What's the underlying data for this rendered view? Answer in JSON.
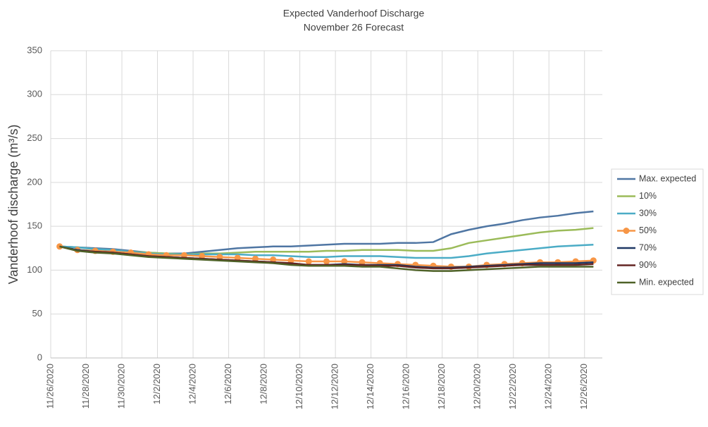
{
  "chart_data": {
    "type": "line",
    "title": "Expected Vanderhoof Discharge",
    "subtitle": "November 26 Forecast",
    "y_label": "Vanderhoof discharge (m³/s)",
    "categories": [
      "11/26/2020",
      null,
      "11/28/2020",
      null,
      "11/30/2020",
      null,
      "12/2/2020",
      null,
      "12/4/2020",
      null,
      "12/6/2020",
      null,
      "12/8/2020",
      null,
      "12/10/2020",
      null,
      "12/12/2020",
      null,
      "12/14/2020",
      null,
      "12/16/2020",
      null,
      "12/18/2020",
      null,
      "12/20/2020",
      null,
      "12/22/2020",
      null,
      "12/24/2020",
      null,
      "12/26/2020"
    ],
    "ylim": [
      0,
      350
    ],
    "yticks": [
      0,
      50,
      100,
      150,
      200,
      250,
      300,
      350
    ],
    "grid": true,
    "legend": "right",
    "series": [
      {
        "name": "Max. expected",
        "color": "#4f76a3",
        "values": [
          127,
          126,
          125,
          124,
          122,
          120,
          119,
          119,
          121,
          123,
          125,
          126,
          127,
          127,
          128,
          129,
          130,
          130,
          130,
          131,
          131,
          132,
          141,
          146,
          150,
          153,
          157,
          160,
          162,
          165,
          167
        ]
      },
      {
        "name": "10%",
        "color": "#9bbb59",
        "values": [
          127,
          126,
          124,
          123,
          121,
          120,
          119,
          118,
          119,
          119,
          120,
          121,
          121,
          121,
          121,
          122,
          122,
          123,
          123,
          123,
          122,
          122,
          125,
          131,
          134,
          137,
          140,
          143,
          145,
          146,
          148
        ]
      },
      {
        "name": "30%",
        "color": "#4bacc6",
        "values": [
          127,
          126,
          124,
          123,
          121,
          119,
          118,
          118,
          118,
          118,
          118,
          117,
          117,
          116,
          115,
          115,
          116,
          116,
          116,
          115,
          114,
          114,
          114,
          116,
          119,
          121,
          123,
          125,
          127,
          128,
          129
        ]
      },
      {
        "name": "50%",
        "color": "#f79646",
        "markers": true,
        "values": [
          127,
          123,
          122,
          121,
          120,
          118,
          117,
          117,
          116,
          115,
          114,
          113,
          112,
          111,
          110,
          110,
          110,
          109,
          108,
          107,
          106,
          105,
          104,
          104,
          106,
          107,
          108,
          109,
          109,
          110,
          111
        ]
      },
      {
        "name": "70%",
        "color": "#1f3864",
        "values": [
          127,
          123,
          121,
          120,
          118,
          116,
          115,
          114,
          113,
          112,
          111,
          110,
          109,
          107,
          106,
          106,
          107,
          106,
          106,
          106,
          104,
          103,
          103,
          104,
          105,
          106,
          107,
          108,
          108,
          108,
          109
        ]
      },
      {
        "name": "90%",
        "color": "#632523",
        "values": [
          127,
          122,
          121,
          120,
          118,
          116,
          115,
          114,
          113,
          112,
          111,
          110,
          109,
          108,
          106,
          106,
          106,
          106,
          105,
          105,
          103,
          102,
          102,
          103,
          104,
          105,
          106,
          106,
          106,
          106,
          107
        ]
      },
      {
        "name": "Min. expected",
        "color": "#4f6228",
        "values": [
          127,
          122,
          120,
          119,
          117,
          115,
          114,
          113,
          112,
          111,
          110,
          109,
          108,
          106,
          105,
          105,
          105,
          104,
          104,
          102,
          100,
          99,
          99,
          100,
          101,
          102,
          103,
          104,
          104,
          104,
          104
        ]
      }
    ]
  }
}
